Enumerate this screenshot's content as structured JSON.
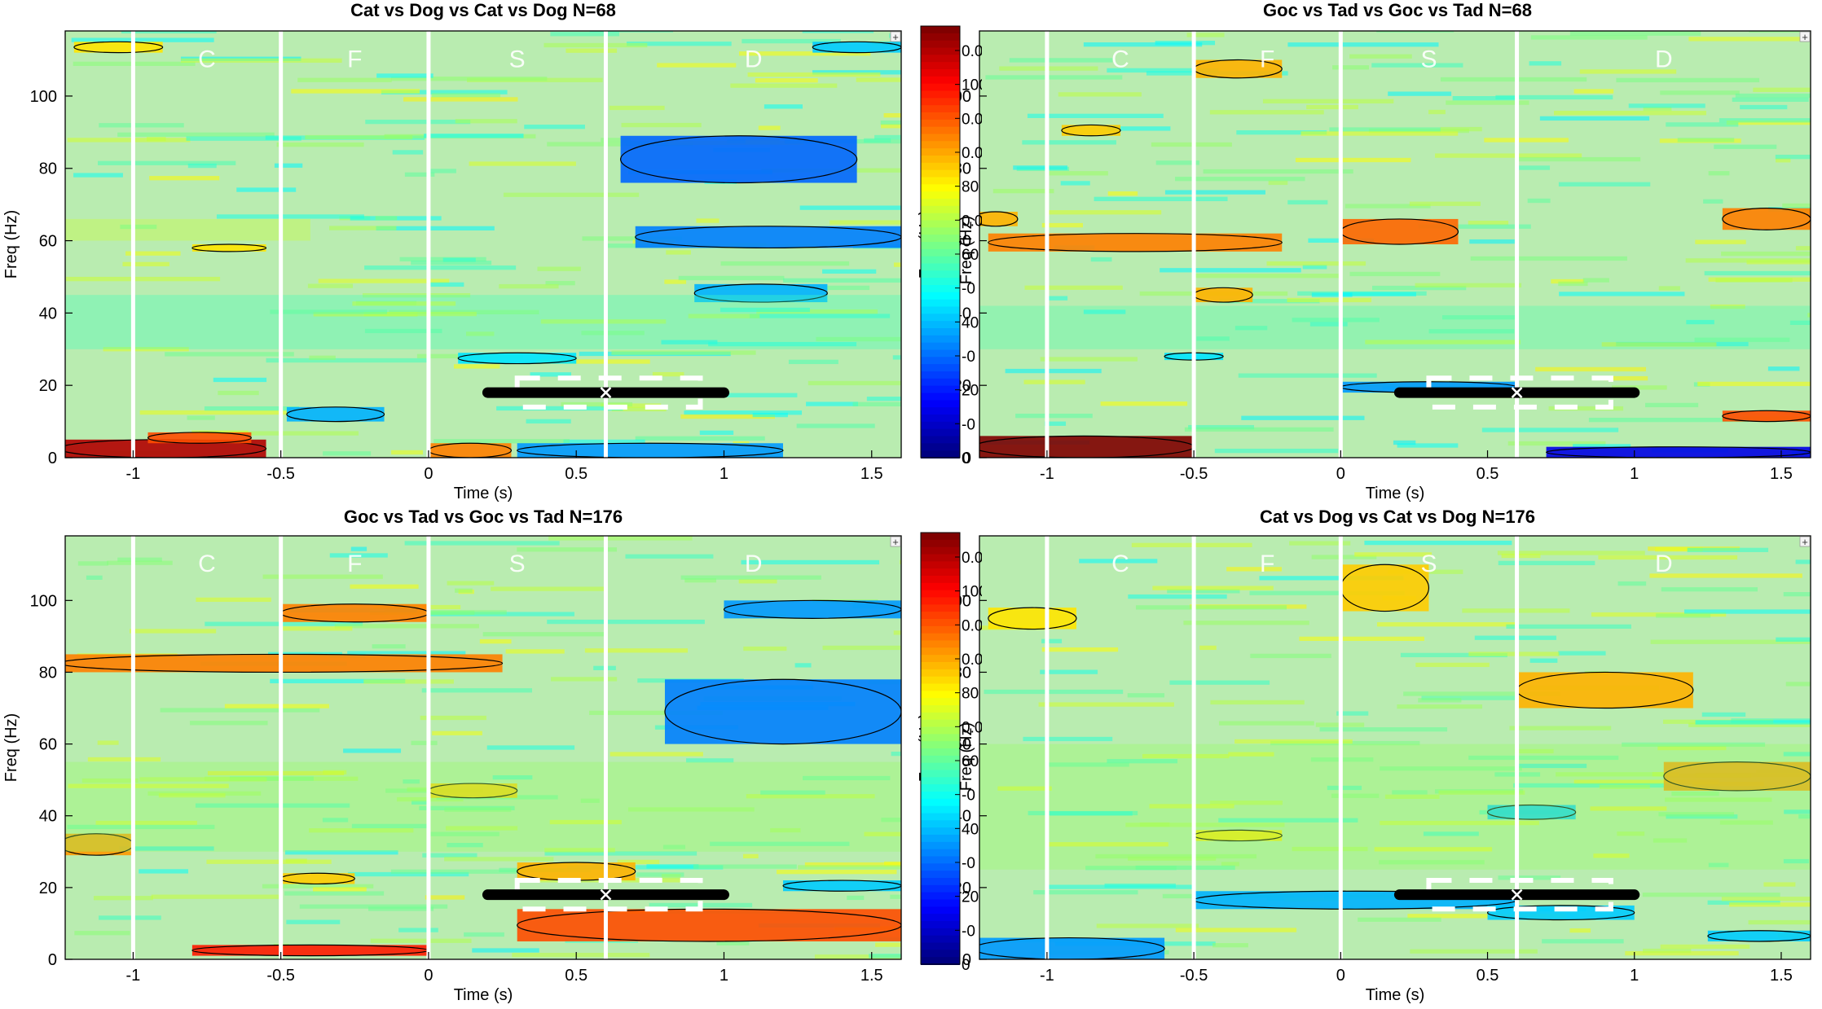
{
  "chart_data": [
    {
      "type": "heatmap",
      "title": "Cat vs Dog vs Cat vs Dog N=68",
      "xlabel": "Time (s)",
      "ylabel": "Freq (Hz)",
      "xlim": [
        -1.23,
        1.6
      ],
      "ylim": [
        0,
        118
      ],
      "xticks": [
        -1,
        -0.5,
        0,
        0.5,
        1,
        1.5
      ],
      "xtick_labels": [
        "-1",
        "-0.5",
        "0",
        "0.5",
        "1",
        "1.5"
      ],
      "yticks": [
        0,
        20,
        40,
        60,
        80,
        100
      ],
      "ytick_labels": [
        "0",
        "20",
        "40",
        "60",
        "80",
        "100"
      ],
      "event_lines": [
        -1,
        -0.5,
        0,
        0.6
      ],
      "epoch_labels": [
        {
          "text": "C",
          "x": -0.75,
          "y": 108
        },
        {
          "text": "F",
          "x": -0.25,
          "y": 108
        },
        {
          "text": "S",
          "x": 0.3,
          "y": 108
        },
        {
          "text": "D",
          "x": 1.1,
          "y": 108
        }
      ],
      "segment": {
        "x_start": 0.2,
        "x_end": 1.0,
        "y": 18,
        "marker_x": 0.6
      },
      "dashed_box": {
        "x_start": 0.3,
        "x_end": 0.92,
        "y_low": 14,
        "y_high": 22
      },
      "clusters": [
        {
          "x0": -1.25,
          "x1": -0.55,
          "y0": 0,
          "y1": 5,
          "v": 0.9
        },
        {
          "x0": -0.95,
          "x1": -0.6,
          "y0": 4,
          "y1": 7,
          "v": 0.6
        },
        {
          "x0": 0.0,
          "x1": 0.28,
          "y0": 0,
          "y1": 4,
          "v": 0.5
        },
        {
          "x0": 0.3,
          "x1": 1.2,
          "y0": 0,
          "y1": 4,
          "v": -0.45
        },
        {
          "x0": -0.48,
          "x1": -0.15,
          "y0": 10,
          "y1": 14,
          "v": -0.4
        },
        {
          "x0": 0.65,
          "x1": 1.45,
          "y0": 76,
          "y1": 89,
          "v": -0.55
        },
        {
          "x0": 0.7,
          "x1": 1.6,
          "y0": 58,
          "y1": 64,
          "v": -0.5
        },
        {
          "x0": 0.9,
          "x1": 1.35,
          "y0": 43,
          "y1": 48,
          "v": -0.4
        },
        {
          "x0": 1.3,
          "x1": 1.6,
          "y0": 112,
          "y1": 115,
          "v": -0.35
        },
        {
          "x0": -1.2,
          "x1": -0.9,
          "y0": 112,
          "y1": 115,
          "v": 0.3
        },
        {
          "x0": -0.8,
          "x1": -0.55,
          "y0": 57,
          "y1": 59,
          "v": 0.3
        },
        {
          "x0": 0.1,
          "x1": 0.5,
          "y0": 26,
          "y1": 29,
          "v": -0.3
        },
        {
          "x0": -1.25,
          "x1": -0.4,
          "y0": 60,
          "y1": 66,
          "v": 0.15
        },
        {
          "x0": -1.25,
          "x1": 1.6,
          "y0": 30,
          "y1": 45,
          "v": -0.12
        }
      ]
    },
    {
      "type": "heatmap",
      "title": "Goc vs Tad vs Goc vs Tad N=68",
      "xlabel": "Time (s)",
      "ylabel": "Freq (Hz)",
      "xlim": [
        -1.23,
        1.6
      ],
      "ylim": [
        0,
        118
      ],
      "xticks": [
        -1,
        -0.5,
        0,
        0.5,
        1,
        1.5
      ],
      "xtick_labels": [
        "-1",
        "-0.5",
        "0",
        "0.5",
        "1",
        "1.5"
      ],
      "yticks": [
        0,
        20,
        40,
        60,
        80,
        100
      ],
      "ytick_labels": [
        "0",
        "20",
        "40",
        "60",
        "80",
        "100"
      ],
      "event_lines": [
        -1,
        -0.5,
        0,
        0.6
      ],
      "epoch_labels": [
        {
          "text": "C",
          "x": -0.75,
          "y": 108
        },
        {
          "text": "F",
          "x": -0.25,
          "y": 108
        },
        {
          "text": "S",
          "x": 0.3,
          "y": 108
        },
        {
          "text": "D",
          "x": 1.1,
          "y": 108
        }
      ],
      "segment": {
        "x_start": 0.2,
        "x_end": 1.0,
        "y": 18,
        "marker_x": 0.6
      },
      "dashed_box": {
        "x_start": 0.3,
        "x_end": 0.92,
        "y_low": 14,
        "y_high": 22
      },
      "clusters": [
        {
          "x0": -1.25,
          "x1": -0.5,
          "y0": 0,
          "y1": 6,
          "v": 1.0
        },
        {
          "x0": 0.7,
          "x1": 1.6,
          "y0": 0,
          "y1": 3,
          "v": -0.8
        },
        {
          "x0": -1.2,
          "x1": -0.2,
          "y0": 57,
          "y1": 62,
          "v": 0.5
        },
        {
          "x0": 0.0,
          "x1": 0.4,
          "y0": 59,
          "y1": 66,
          "v": 0.55
        },
        {
          "x0": 1.3,
          "x1": 1.6,
          "y0": 63,
          "y1": 69,
          "v": 0.5
        },
        {
          "x0": -0.5,
          "x1": -0.2,
          "y0": 105,
          "y1": 110,
          "v": 0.4
        },
        {
          "x0": -0.5,
          "x1": -0.3,
          "y0": 43,
          "y1": 47,
          "v": 0.4
        },
        {
          "x0": -0.95,
          "x1": -0.75,
          "y0": 89,
          "y1": 92,
          "v": 0.35
        },
        {
          "x0": -1.25,
          "x1": -1.1,
          "y0": 64,
          "y1": 68,
          "v": 0.4
        },
        {
          "x0": 0.0,
          "x1": 0.6,
          "y0": 18,
          "y1": 21,
          "v": -0.45
        },
        {
          "x0": -0.6,
          "x1": -0.4,
          "y0": 27,
          "y1": 29,
          "v": -0.3
        },
        {
          "x0": 1.3,
          "x1": 1.6,
          "y0": 10,
          "y1": 13,
          "v": 0.6
        },
        {
          "x0": -1.25,
          "x1": 1.6,
          "y0": 30,
          "y1": 42,
          "v": -0.1
        }
      ]
    },
    {
      "type": "heatmap",
      "title": "Goc vs Tad vs Goc vs Tad N=176",
      "xlabel": "Time (s)",
      "ylabel": "Freq (Hz)",
      "xlim": [
        -1.23,
        1.6
      ],
      "ylim": [
        0,
        118
      ],
      "xticks": [
        -1,
        -0.5,
        0,
        0.5,
        1,
        1.5
      ],
      "xtick_labels": [
        "-1",
        "-0.5",
        "0",
        "0.5",
        "1",
        "1.5"
      ],
      "yticks": [
        0,
        20,
        40,
        60,
        80,
        100
      ],
      "ytick_labels": [
        "0",
        "20",
        "40",
        "60",
        "80",
        "100"
      ],
      "event_lines": [
        -1,
        -0.5,
        0,
        0.6
      ],
      "epoch_labels": [
        {
          "text": "C",
          "x": -0.75,
          "y": 108
        },
        {
          "text": "F",
          "x": -0.25,
          "y": 108
        },
        {
          "text": "S",
          "x": 0.3,
          "y": 108
        },
        {
          "text": "D",
          "x": 1.1,
          "y": 108
        }
      ],
      "segment": {
        "x_start": 0.2,
        "x_end": 1.0,
        "y": 18,
        "marker_x": 0.6
      },
      "dashed_box": {
        "x_start": 0.3,
        "x_end": 0.92,
        "y_low": 14,
        "y_high": 22
      },
      "clusters": [
        {
          "x0": -1.25,
          "x1": 0.25,
          "y0": 80,
          "y1": 85,
          "v": 0.5
        },
        {
          "x0": -0.5,
          "x1": -0.0,
          "y0": 94,
          "y1": 99,
          "v": 0.5
        },
        {
          "x0": -1.25,
          "x1": -1.0,
          "y0": 29,
          "y1": 35,
          "v": 0.45
        },
        {
          "x0": -0.8,
          "x1": 0.0,
          "y0": 1,
          "y1": 4,
          "v": 0.7
        },
        {
          "x0": 0.3,
          "x1": 1.6,
          "y0": 5,
          "y1": 14,
          "v": 0.6
        },
        {
          "x0": 0.8,
          "x1": 1.6,
          "y0": 60,
          "y1": 78,
          "v": -0.5
        },
        {
          "x0": 1.0,
          "x1": 1.6,
          "y0": 95,
          "y1": 100,
          "v": -0.45
        },
        {
          "x0": 1.2,
          "x1": 1.6,
          "y0": 19,
          "y1": 22,
          "v": -0.35
        },
        {
          "x0": 0.3,
          "x1": 0.7,
          "y0": 22,
          "y1": 27,
          "v": 0.4
        },
        {
          "x0": 0.0,
          "x1": 0.3,
          "y0": 45,
          "y1": 49,
          "v": 0.35
        },
        {
          "x0": -0.5,
          "x1": -0.25,
          "y0": 21,
          "y1": 24,
          "v": 0.35
        },
        {
          "x0": -1.25,
          "x1": 1.6,
          "y0": 30,
          "y1": 55,
          "v": 0.05
        }
      ]
    },
    {
      "type": "heatmap",
      "title": "Cat vs Dog vs Cat vs Dog N=176",
      "xlabel": "Time (s)",
      "ylabel": "Freq (Hz)",
      "xlim": [
        -1.23,
        1.6
      ],
      "ylim": [
        0,
        118
      ],
      "xticks": [
        -1,
        -0.5,
        0,
        0.5,
        1,
        1.5
      ],
      "xtick_labels": [
        "-1",
        "-0.5",
        "0",
        "0.5",
        "1",
        "1.5"
      ],
      "yticks": [
        0,
        20,
        40,
        60,
        80,
        100
      ],
      "ytick_labels": [
        "0",
        "20",
        "40",
        "60",
        "80",
        "100"
      ],
      "event_lines": [
        -1,
        -0.5,
        0,
        0.6
      ],
      "epoch_labels": [
        {
          "text": "C",
          "x": -0.75,
          "y": 108
        },
        {
          "text": "F",
          "x": -0.25,
          "y": 108
        },
        {
          "text": "S",
          "x": 0.3,
          "y": 108
        },
        {
          "text": "D",
          "x": 1.1,
          "y": 108
        }
      ],
      "segment": {
        "x_start": 0.2,
        "x_end": 1.0,
        "y": 18,
        "marker_x": 0.6
      },
      "dashed_box": {
        "x_start": 0.3,
        "x_end": 0.92,
        "y_low": 14,
        "y_high": 22
      },
      "clusters": [
        {
          "x0": -1.25,
          "x1": -0.6,
          "y0": 0,
          "y1": 6,
          "v": -0.45
        },
        {
          "x0": -0.5,
          "x1": 0.6,
          "y0": 14,
          "y1": 19,
          "v": -0.4
        },
        {
          "x0": 0.5,
          "x1": 1.0,
          "y0": 11,
          "y1": 15,
          "v": -0.35
        },
        {
          "x0": 0.6,
          "x1": 1.2,
          "y0": 70,
          "y1": 80,
          "v": 0.4
        },
        {
          "x0": 1.1,
          "x1": 1.6,
          "y0": 47,
          "y1": 55,
          "v": 0.45
        },
        {
          "x0": 0.0,
          "x1": 0.3,
          "y0": 97,
          "y1": 110,
          "v": 0.35
        },
        {
          "x0": -1.2,
          "x1": -0.9,
          "y0": 92,
          "y1": 98,
          "v": 0.3
        },
        {
          "x0": -0.5,
          "x1": -0.2,
          "y0": 33,
          "y1": 36,
          "v": 0.3
        },
        {
          "x0": 0.5,
          "x1": 0.8,
          "y0": 39,
          "y1": 43,
          "v": -0.35
        },
        {
          "x0": 1.25,
          "x1": 1.6,
          "y0": 5,
          "y1": 8,
          "v": -0.35
        },
        {
          "x0": -1.25,
          "x1": 1.6,
          "y0": 25,
          "y1": 60,
          "v": 0.05
        }
      ]
    }
  ],
  "colorbars": [
    {
      "tick_labels": [
        "0.0",
        "100",
        "0.0",
        "0.0",
        "80",
        "0.0",
        "60",
        "-0",
        "40",
        "-0",
        "20",
        "-0",
        "0"
      ],
      "label": "Freq (Hz)"
    },
    {
      "tick_labels": [
        "0.0",
        "100",
        "0.0",
        "0.0",
        "80",
        "0.0",
        "60",
        "-0",
        "40",
        "-0",
        "20",
        "-0",
        "0"
      ],
      "label": "Freq (Hz)"
    }
  ],
  "colors": {
    "background_field": "#b9ecb0",
    "event_line": "#ffffff",
    "segment": "#000000",
    "contour": "#000000",
    "axis": "#000000"
  },
  "corner_glyph": "+"
}
